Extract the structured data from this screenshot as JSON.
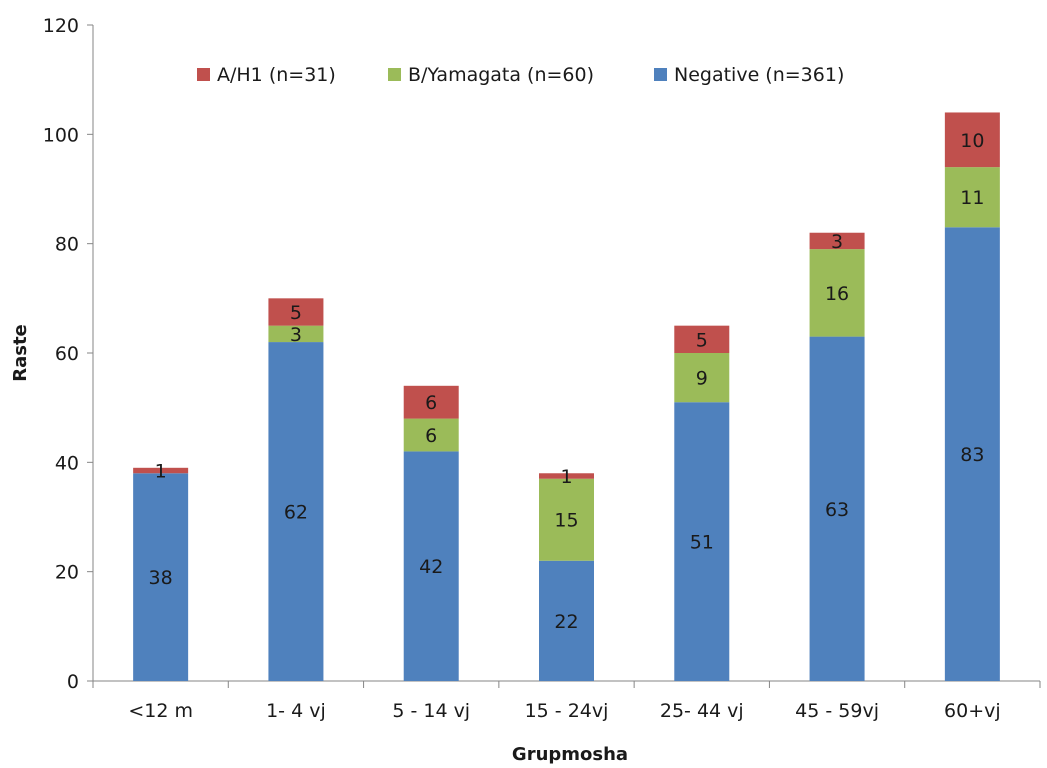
{
  "chart_data": {
    "type": "bar",
    "stacked": true,
    "title": "",
    "xlabel": "Grupmosha",
    "ylabel": "Raste",
    "ylim": [
      0,
      120
    ],
    "yticks": [
      0,
      20,
      40,
      60,
      80,
      100,
      120
    ],
    "categories": [
      "<12 m",
      "1- 4 vj",
      "5 - 14 vj",
      "15 - 24vj",
      "25- 44 vj",
      "45 - 59vj",
      "60+vj"
    ],
    "series": [
      {
        "name": "Negative (n=361)",
        "color": "#4f81bd",
        "values": [
          38,
          62,
          42,
          22,
          51,
          63,
          83
        ]
      },
      {
        "name": "B/Yamagata (n=60)",
        "color": "#9bbb59",
        "values": [
          0,
          3,
          6,
          15,
          9,
          16,
          11
        ]
      },
      {
        "name": "A/H1 (n=31)",
        "color": "#c0504d",
        "values": [
          1,
          5,
          6,
          1,
          5,
          3,
          10
        ]
      }
    ],
    "legend_order": [
      2,
      1,
      0
    ],
    "legend_position": "top",
    "grid": false
  }
}
